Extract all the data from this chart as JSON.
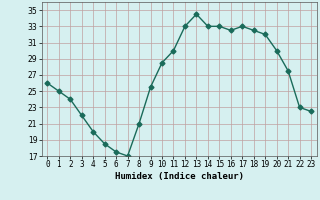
{
  "x": [
    0,
    1,
    2,
    3,
    4,
    5,
    6,
    7,
    8,
    9,
    10,
    11,
    12,
    13,
    14,
    15,
    16,
    17,
    18,
    19,
    20,
    21,
    22,
    23
  ],
  "y": [
    26,
    25,
    24,
    22,
    20,
    18.5,
    17.5,
    17,
    21,
    25.5,
    28.5,
    30,
    33,
    34.5,
    33,
    33,
    32.5,
    33,
    32.5,
    32,
    30,
    27.5,
    23,
    22.5
  ],
  "xlabel": "Humidex (Indice chaleur)",
  "ylim": [
    17,
    36
  ],
  "xlim": [
    -0.5,
    23.5
  ],
  "yticks": [
    17,
    19,
    21,
    23,
    25,
    27,
    29,
    31,
    33,
    35
  ],
  "xtick_labels": [
    "0",
    "1",
    "2",
    "3",
    "4",
    "5",
    "6",
    "7",
    "8",
    "9",
    "10",
    "11",
    "12",
    "13",
    "14",
    "15",
    "16",
    "17",
    "18",
    "19",
    "20",
    "21",
    "22",
    "23"
  ],
  "line_color": "#1a6b5a",
  "marker": "D",
  "marker_size": 2.5,
  "bg_color": "#d6f0f0",
  "grid_color": "#c0a0a0",
  "line_width": 1.0
}
